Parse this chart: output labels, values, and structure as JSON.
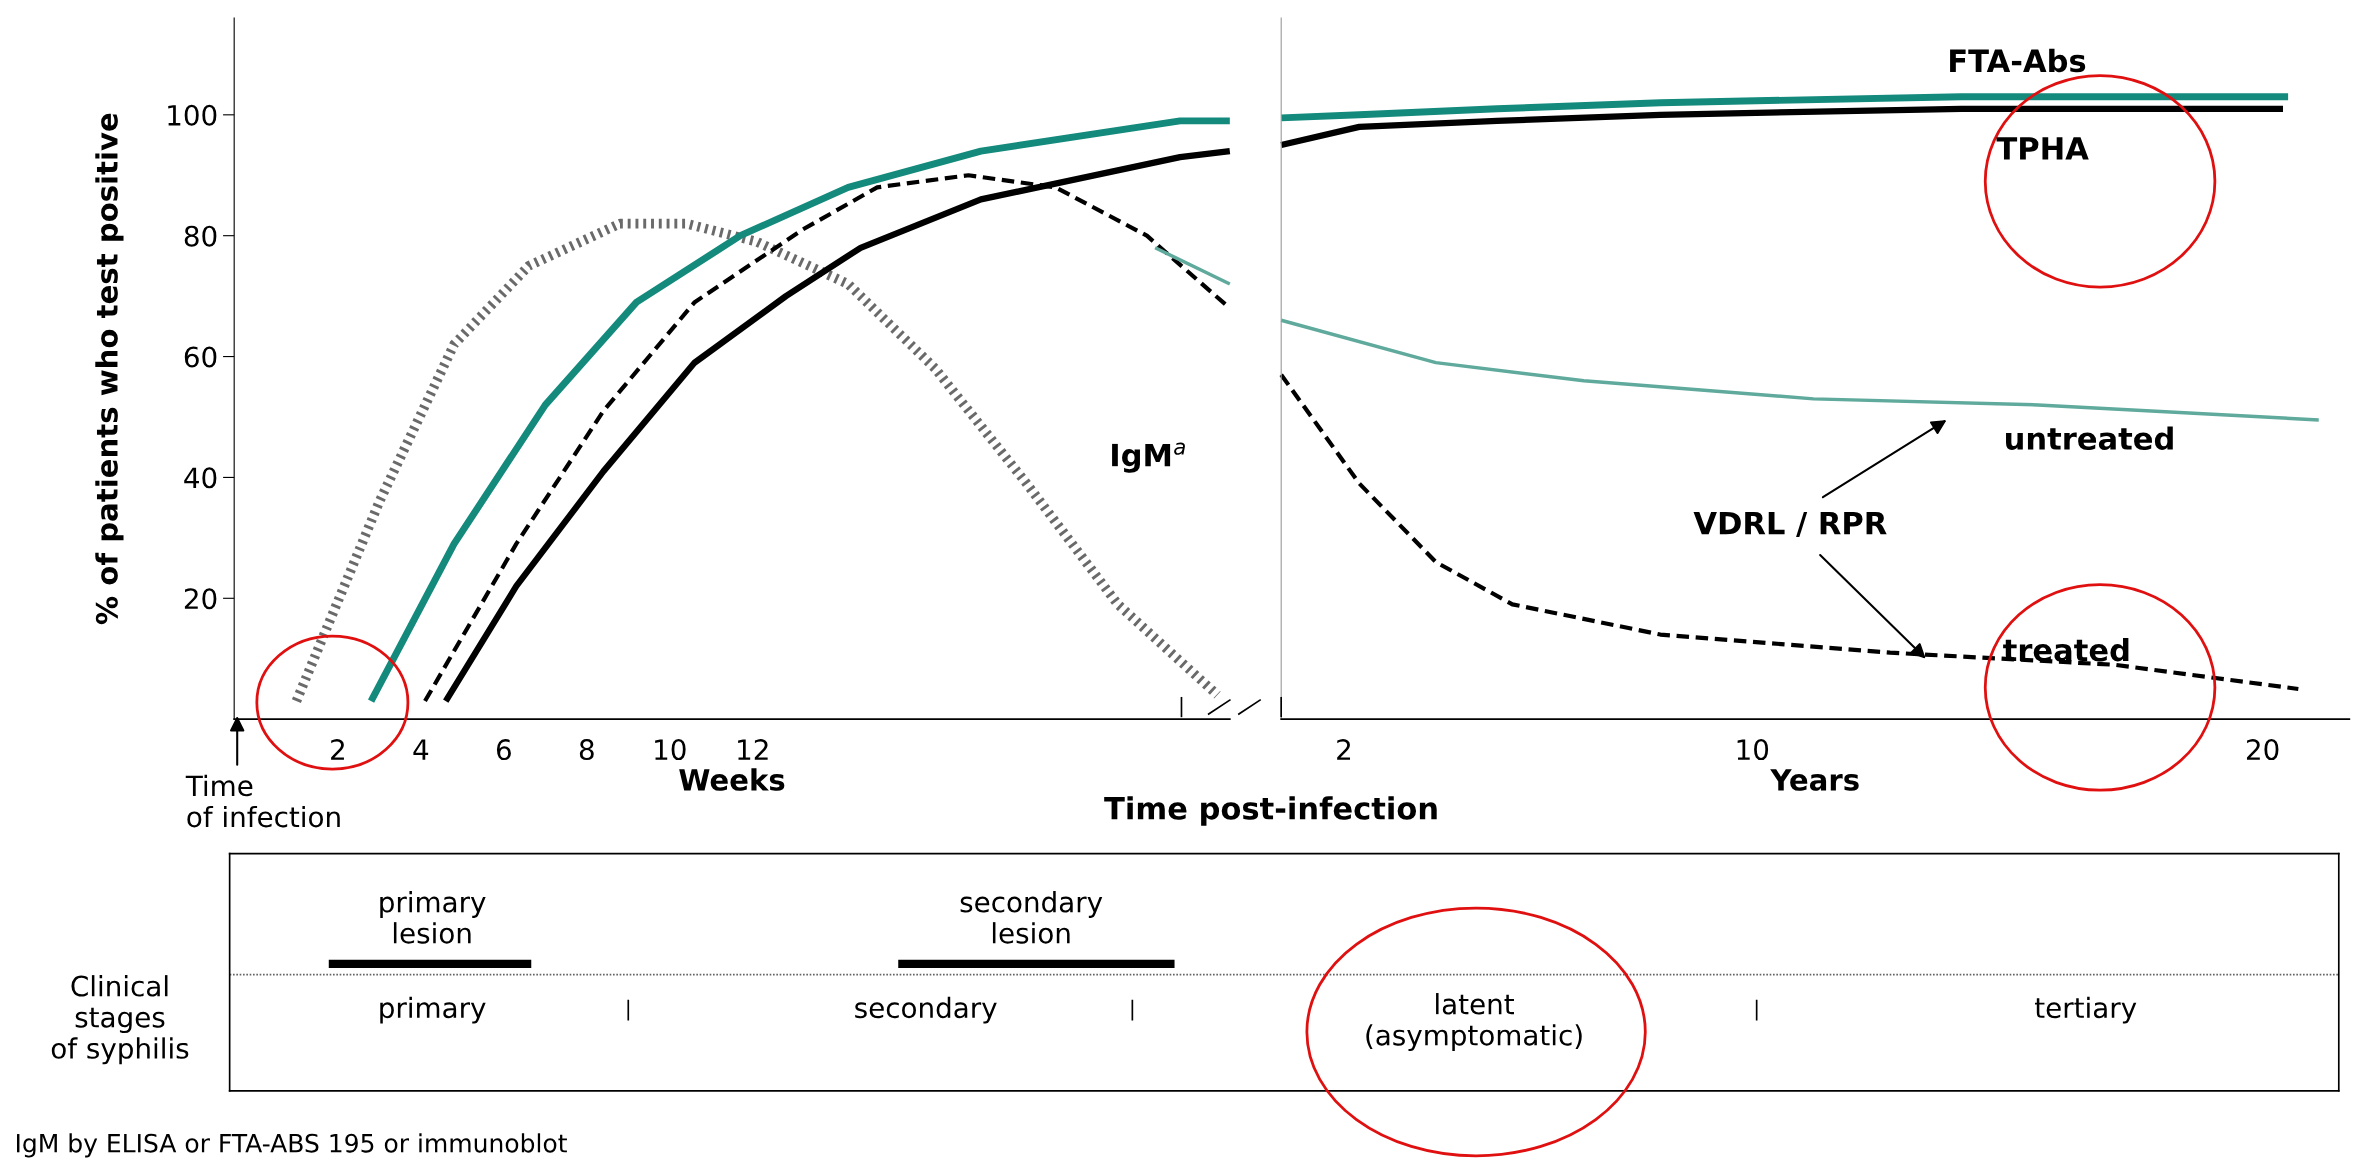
{
  "chart_data": [
    {
      "type": "line",
      "xlabel": "Weeks",
      "ylabel": "% of patients who test positive",
      "xlim": [
        -0.5,
        23.5
      ],
      "xticks": [
        2,
        4,
        6,
        8,
        10,
        12
      ],
      "ylim": [
        0,
        116
      ],
      "yticks": [
        20,
        40,
        60,
        80,
        100
      ],
      "grid": false,
      "legend": false,
      "marker": "none",
      "series": [
        {
          "color": "#6a6a6a",
          "line_style": "dotted",
          "x": [
            1.0,
            3.0,
            4.8,
            6.6,
            8.8,
            10.4,
            12.1,
            14.3,
            16.4,
            18.6,
            20.8,
            23.2
          ],
          "values": [
            3,
            36,
            62,
            75,
            82,
            82,
            79,
            72,
            58,
            39,
            19,
            4
          ]
        },
        {
          "color": "#138a7c",
          "line_style": "solid",
          "x": [
            2.8,
            4.8,
            7.0,
            9.2,
            11.7,
            14.3,
            17.5,
            22.3,
            23.5
          ],
          "values": [
            3,
            29,
            52,
            69,
            80,
            88,
            94,
            99,
            99
          ]
        },
        {
          "color": "#000000",
          "line_style": "solid",
          "x": [
            4.6,
            6.3,
            8.4,
            10.6,
            12.8,
            14.6,
            17.5,
            22.3,
            23.5
          ],
          "values": [
            3,
            22,
            41,
            59,
            70,
            78,
            86,
            93,
            94
          ]
        },
        {
          "color": "#000000",
          "line_style": "dashed",
          "x": [
            4.1,
            6.3,
            8.4,
            10.6,
            13.2,
            15.0,
            17.2,
            19.3,
            21.5,
            23.5
          ],
          "values": [
            3,
            29,
            51,
            69,
            81,
            88,
            90,
            88,
            80,
            68
          ]
        },
        {
          "color": "#5faa9c",
          "line_style": "solid",
          "x": [
            21.7,
            23.5
          ],
          "values": [
            78,
            72
          ]
        }
      ],
      "annotations": [
        "IgM$^{a}$",
        "Time\nof infection"
      ]
    },
    {
      "type": "line",
      "xlabel": "Years",
      "xlim": [
        0.77,
        21.7
      ],
      "xticks": [
        2,
        10,
        20
      ],
      "ylim": [
        0,
        116
      ],
      "yticks": [
        20,
        40,
        60,
        80,
        100
      ],
      "tick_labels": "x",
      "grid": false,
      "legend": false,
      "marker": "none",
      "series": [
        {
          "color": "#138a7c",
          "line_style": "solid",
          "x": [
            0.77,
            2.3,
            5,
            8.2,
            14.1,
            20.5
          ],
          "values": [
            99.5,
            100,
            101,
            102,
            103,
            103
          ]
        },
        {
          "color": "#000000",
          "line_style": "solid",
          "x": [
            0.77,
            2.3,
            5,
            8.2,
            14.1,
            20.4
          ],
          "values": [
            95,
            98,
            99,
            100,
            101,
            101
          ]
        },
        {
          "color": "#000000",
          "line_style": "dashed",
          "x": [
            0.77,
            2.3,
            3.8,
            5.3,
            8.2,
            12.7,
            17.1,
            20.7
          ],
          "values": [
            57,
            39,
            26,
            19,
            14,
            11,
            9,
            5
          ]
        },
        {
          "color": "#5faa9c",
          "line_style": "solid",
          "x": [
            0.77,
            3.8,
            6.7,
            11.2,
            15.6,
            21.1
          ],
          "values": [
            66,
            59,
            56,
            53,
            52,
            49.5
          ]
        }
      ],
      "annotations": [
        "FTA-Abs",
        "TPHA",
        "untreated",
        "treated",
        {
          "text": "VDRL / RPR",
          "x": 13.4,
          "y": 10
        }
      ]
    },
    {
      "type": "other",
      "annotations": [
        "Time post-infection",
        "primary\nlesion",
        "secondary\nlesion",
        "Clinical\nstages\nof syphilis",
        "primary",
        "secondary",
        "latent\n(asymptomatic)",
        "tertiary",
        "IgM by ELISA or FTA-ABS 195 or immunoblot"
      ]
    }
  ]
}
